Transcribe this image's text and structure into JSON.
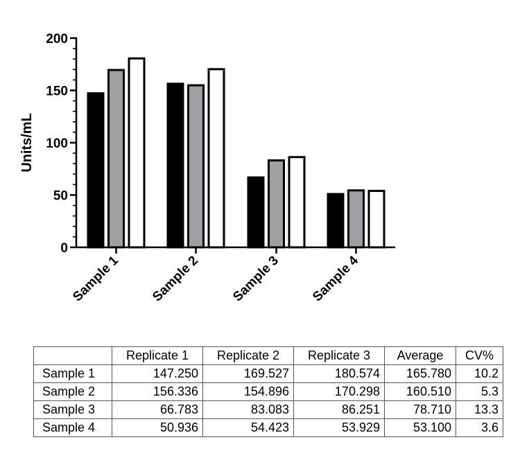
{
  "chart_data": {
    "type": "bar",
    "title": "",
    "xlabel": "",
    "ylabel": "Units/mL",
    "ylim": [
      0,
      200
    ],
    "yticks": [
      "0",
      "50",
      "100",
      "150",
      "200"
    ],
    "categories": [
      "Sample 1",
      "Sample 2",
      "Sample 3",
      "Sample 4"
    ],
    "series": [
      {
        "values": [
          147.25,
          156.336,
          66.783,
          50.936
        ],
        "color": "#000000"
      },
      {
        "values": [
          169.527,
          154.896,
          83.083,
          54.423
        ],
        "color": "#a0a0a4"
      },
      {
        "values": [
          180.574,
          170.298,
          86.251,
          53.929
        ],
        "color": "#ffffff"
      }
    ],
    "grid": false,
    "legend": "none"
  },
  "table": {
    "corner": "",
    "headers": [
      "Replicate 1",
      "Replicate 2",
      "Replicate 3",
      "Average",
      "CV%"
    ],
    "rows": [
      {
        "label": "Sample 1",
        "cells": [
          "147.250",
          "169.527",
          "180.574",
          "165.780",
          "10.2"
        ]
      },
      {
        "label": "Sample 2",
        "cells": [
          "156.336",
          "154.896",
          "170.298",
          "160.510",
          "5.3"
        ]
      },
      {
        "label": "Sample 3",
        "cells": [
          "66.783",
          "83.083",
          "86.251",
          "78.710",
          "13.3"
        ]
      },
      {
        "label": "Sample 4",
        "cells": [
          "50.936",
          "54.423",
          "53.929",
          "53.100",
          "3.6"
        ]
      }
    ]
  }
}
